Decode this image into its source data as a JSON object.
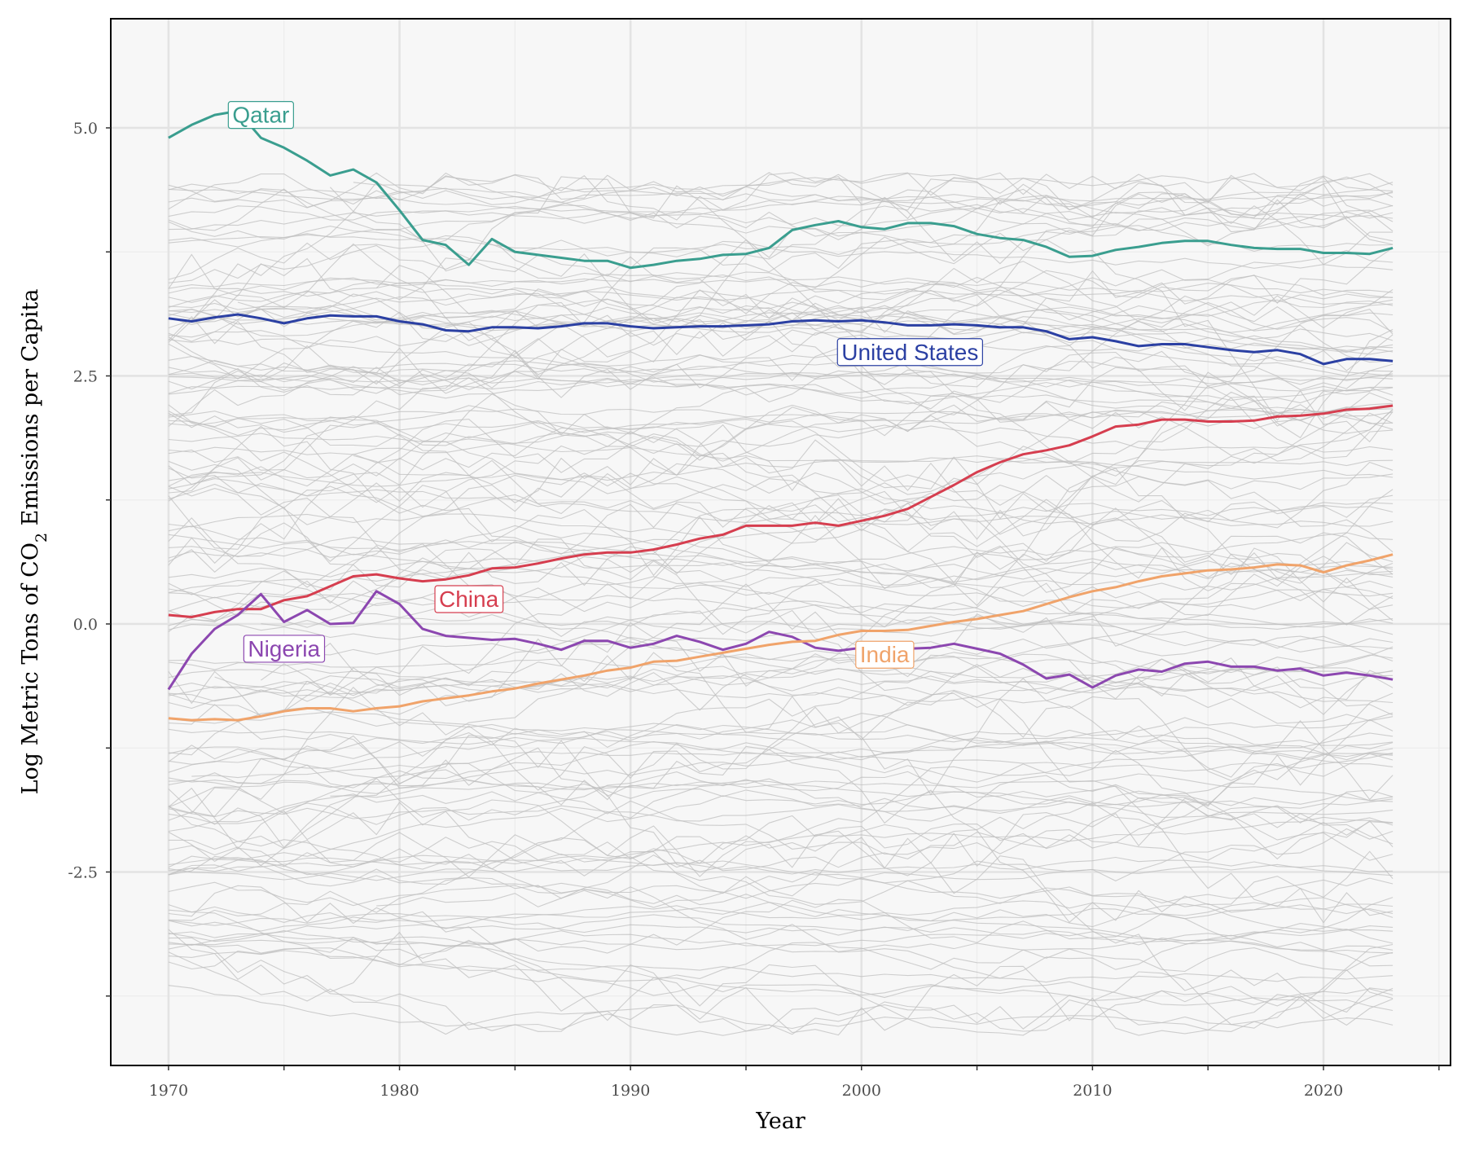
{
  "chart_data": {
    "type": "line",
    "title": "",
    "xlabel": "Year",
    "ylabel_prefix": "Log Metric Tons of CO",
    "ylabel_subscript": "2",
    "ylabel_suffix": " Emissions per Capita",
    "xlim": [
      1967.5,
      2025.5
    ],
    "ylim": [
      -4.45,
      6.1
    ],
    "x_ticks": [
      1970,
      1980,
      1990,
      2000,
      2010,
      2020
    ],
    "x_tick_labels": [
      "1970",
      "1980",
      "1990",
      "2000",
      "2010",
      "2020"
    ],
    "y_ticks": [
      -2.5,
      0,
      2.5,
      5
    ],
    "y_tick_labels": [
      "-2.5",
      "0.0",
      "2.5",
      "5.0"
    ],
    "grid": true,
    "background_color": "#f7f7f7",
    "grid_color": "#e3e3e3",
    "background_series_color": "#bfbfbf",
    "background_series_count": 150,
    "background_series_note_seed": 7,
    "highlighted_series": [
      {
        "name": "Qatar",
        "color": "#3a9e8f",
        "label_x": 1974,
        "label_y": 5.13,
        "x": [
          1970,
          1971,
          1972,
          1973,
          1974,
          1975,
          1976,
          1977,
          1978,
          1979,
          1980,
          1981,
          1982,
          1983,
          1984,
          1985,
          1986,
          1987,
          1988,
          1989,
          1990,
          1991,
          1992,
          1993,
          1994,
          1995,
          1996,
          1997,
          1998,
          1999,
          2000,
          2001,
          2002,
          2003,
          2004,
          2005,
          2006,
          2007,
          2008,
          2009,
          2010,
          2011,
          2012,
          2013,
          2014,
          2015,
          2016,
          2017,
          2018,
          2019,
          2020,
          2021,
          2022,
          2023
        ],
        "y": [
          4.9,
          5.03,
          5.13,
          5.17,
          4.9,
          4.8,
          4.67,
          4.52,
          4.58,
          4.45,
          4.17,
          3.87,
          3.82,
          3.62,
          3.88,
          3.75,
          3.72,
          3.69,
          3.66,
          3.66,
          3.59,
          3.62,
          3.66,
          3.68,
          3.72,
          3.73,
          3.79,
          3.97,
          4.02,
          4.06,
          4.0,
          3.98,
          4.04,
          4.04,
          4.01,
          3.93,
          3.89,
          3.87,
          3.8,
          3.7,
          3.71,
          3.77,
          3.8,
          3.84,
          3.86,
          3.86,
          3.82,
          3.79,
          3.78,
          3.78,
          3.74,
          3.74,
          3.73,
          3.79
        ]
      },
      {
        "name": "United States",
        "color": "#2b40a3",
        "label_x": 2002.1,
        "label_y": 2.74,
        "x": [
          1970,
          1971,
          1972,
          1973,
          1974,
          1975,
          1976,
          1977,
          1978,
          1979,
          1980,
          1981,
          1982,
          1983,
          1984,
          1985,
          1986,
          1987,
          1988,
          1989,
          1990,
          1991,
          1992,
          1993,
          1994,
          1995,
          1996,
          1997,
          1998,
          1999,
          2000,
          2001,
          2002,
          2003,
          2004,
          2005,
          2006,
          2007,
          2008,
          2009,
          2010,
          2011,
          2012,
          2013,
          2014,
          2015,
          2016,
          2017,
          2018,
          2019,
          2020,
          2021,
          2022,
          2023
        ],
        "y": [
          3.08,
          3.05,
          3.09,
          3.12,
          3.08,
          3.03,
          3.08,
          3.11,
          3.1,
          3.1,
          3.05,
          3.02,
          2.96,
          2.95,
          2.99,
          2.99,
          2.98,
          3.0,
          3.03,
          3.03,
          3.0,
          2.98,
          2.99,
          3.0,
          3.0,
          3.01,
          3.02,
          3.05,
          3.06,
          3.05,
          3.06,
          3.04,
          3.01,
          3.01,
          3.02,
          3.01,
          2.99,
          2.99,
          2.95,
          2.87,
          2.89,
          2.85,
          2.8,
          2.82,
          2.82,
          2.79,
          2.76,
          2.74,
          2.76,
          2.72,
          2.62,
          2.67,
          2.67,
          2.65
        ]
      },
      {
        "name": "China",
        "color": "#d63e4f",
        "label_x": 1983,
        "label_y": 0.25,
        "x": [
          1970,
          1971,
          1972,
          1973,
          1974,
          1975,
          1976,
          1977,
          1978,
          1979,
          1980,
          1981,
          1982,
          1983,
          1984,
          1985,
          1986,
          1987,
          1988,
          1989,
          1990,
          1991,
          1992,
          1993,
          1994,
          1995,
          1996,
          1997,
          1998,
          1999,
          2000,
          2001,
          2002,
          2003,
          2004,
          2005,
          2006,
          2007,
          2008,
          2009,
          2010,
          2011,
          2012,
          2013,
          2014,
          2015,
          2016,
          2017,
          2018,
          2019,
          2020,
          2021,
          2022,
          2023
        ],
        "y": [
          0.09,
          0.07,
          0.12,
          0.15,
          0.15,
          0.24,
          0.28,
          0.38,
          0.48,
          0.5,
          0.46,
          0.43,
          0.45,
          0.49,
          0.56,
          0.57,
          0.61,
          0.66,
          0.7,
          0.72,
          0.72,
          0.75,
          0.8,
          0.86,
          0.9,
          0.99,
          0.99,
          0.99,
          1.02,
          0.99,
          1.04,
          1.09,
          1.16,
          1.28,
          1.4,
          1.53,
          1.63,
          1.71,
          1.75,
          1.8,
          1.89,
          1.99,
          2.01,
          2.06,
          2.06,
          2.04,
          2.04,
          2.05,
          2.09,
          2.1,
          2.12,
          2.16,
          2.17,
          2.2
        ]
      },
      {
        "name": "Nigeria",
        "color": "#8c47b0",
        "label_x": 1975,
        "label_y": -0.25,
        "x": [
          1970,
          1971,
          1972,
          1973,
          1974,
          1975,
          1976,
          1977,
          1978,
          1979,
          1980,
          1981,
          1982,
          1983,
          1984,
          1985,
          1986,
          1987,
          1988,
          1989,
          1990,
          1991,
          1992,
          1993,
          1994,
          1995,
          1996,
          1997,
          1998,
          1999,
          2000,
          2001,
          2002,
          2003,
          2004,
          2005,
          2006,
          2007,
          2008,
          2009,
          2010,
          2011,
          2012,
          2013,
          2014,
          2015,
          2016,
          2017,
          2018,
          2019,
          2020,
          2021,
          2022,
          2023
        ],
        "y": [
          -0.66,
          -0.3,
          -0.05,
          0.09,
          0.3,
          0.02,
          0.14,
          0.0,
          0.01,
          0.33,
          0.2,
          -0.05,
          -0.12,
          -0.14,
          -0.16,
          -0.15,
          -0.2,
          -0.26,
          -0.17,
          -0.17,
          -0.24,
          -0.2,
          -0.12,
          -0.18,
          -0.26,
          -0.2,
          -0.08,
          -0.13,
          -0.24,
          -0.27,
          -0.24,
          -0.21,
          -0.25,
          -0.24,
          -0.2,
          -0.25,
          -0.3,
          -0.41,
          -0.55,
          -0.51,
          -0.64,
          -0.52,
          -0.46,
          -0.48,
          -0.4,
          -0.38,
          -0.43,
          -0.43,
          -0.47,
          -0.45,
          -0.52,
          -0.49,
          -0.52,
          -0.56
        ]
      },
      {
        "name": "India",
        "color": "#f0a36a",
        "label_x": 2001,
        "label_y": -0.31,
        "x": [
          1970,
          1971,
          1972,
          1973,
          1974,
          1975,
          1976,
          1977,
          1978,
          1979,
          1980,
          1981,
          1982,
          1983,
          1984,
          1985,
          1986,
          1987,
          1988,
          1989,
          1990,
          1991,
          1992,
          1993,
          1994,
          1995,
          1996,
          1997,
          1998,
          1999,
          2000,
          2001,
          2002,
          2003,
          2004,
          2005,
          2006,
          2007,
          2008,
          2009,
          2010,
          2011,
          2012,
          2013,
          2014,
          2015,
          2016,
          2017,
          2018,
          2019,
          2020,
          2021,
          2022,
          2023
        ],
        "y": [
          -0.95,
          -0.97,
          -0.96,
          -0.97,
          -0.93,
          -0.88,
          -0.85,
          -0.85,
          -0.88,
          -0.85,
          -0.83,
          -0.78,
          -0.75,
          -0.72,
          -0.68,
          -0.65,
          -0.6,
          -0.56,
          -0.52,
          -0.47,
          -0.44,
          -0.38,
          -0.37,
          -0.33,
          -0.29,
          -0.25,
          -0.21,
          -0.18,
          -0.17,
          -0.11,
          -0.07,
          -0.07,
          -0.06,
          -0.02,
          0.02,
          0.05,
          0.09,
          0.13,
          0.2,
          0.27,
          0.33,
          0.37,
          0.43,
          0.48,
          0.51,
          0.54,
          0.55,
          0.57,
          0.6,
          0.59,
          0.52,
          0.59,
          0.64,
          0.7
        ]
      }
    ]
  }
}
